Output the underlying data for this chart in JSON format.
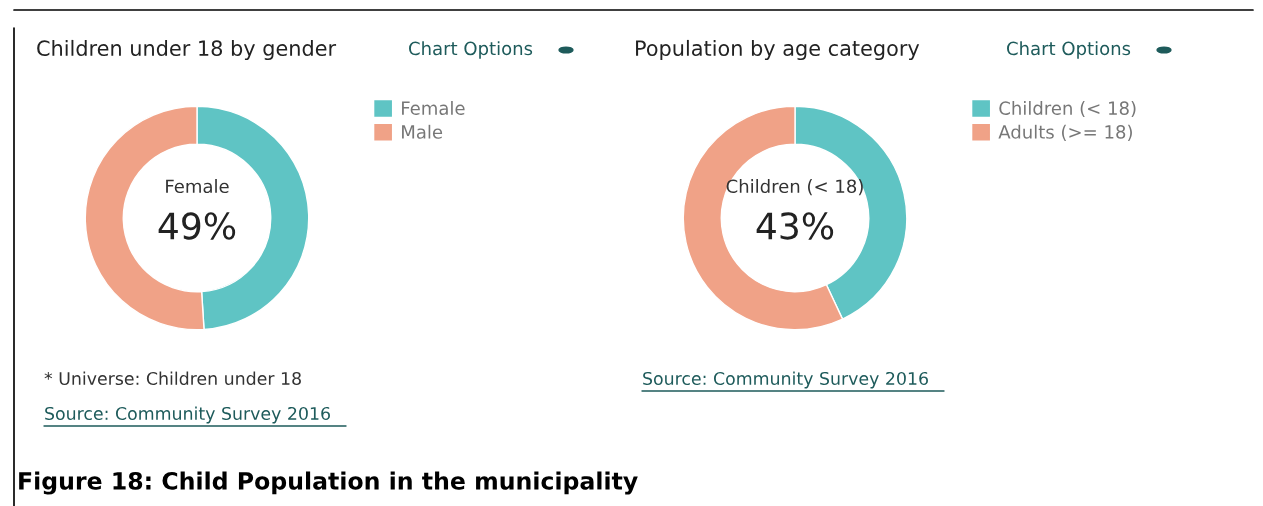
{
  "chart_data": [
    {
      "type": "donut",
      "title": "Children under 18 by gender",
      "categories": [
        "Female",
        "Male"
      ],
      "values": [
        49,
        51
      ],
      "colors": [
        "#5fc4c4",
        "#f0a287"
      ],
      "value_labels": [
        "49%",
        null
      ],
      "legend": "right",
      "annotations": [
        "Chart Options",
        "* Universe: Children under 18",
        "Source: Community Survey 2016"
      ]
    },
    {
      "type": "donut",
      "title": "Population by age category",
      "categories": [
        "Children (< 18)",
        "Adults (>= 18)"
      ],
      "values": [
        43,
        57
      ],
      "colors": [
        "#5fc4c4",
        "#f0a287"
      ],
      "value_labels": [
        "43%",
        null
      ],
      "legend": "right",
      "annotations": [
        "Chart Options",
        "Source: Community Survey 2016",
        "Figure 18: Child Population in the municipality"
      ]
    }
  ]
}
